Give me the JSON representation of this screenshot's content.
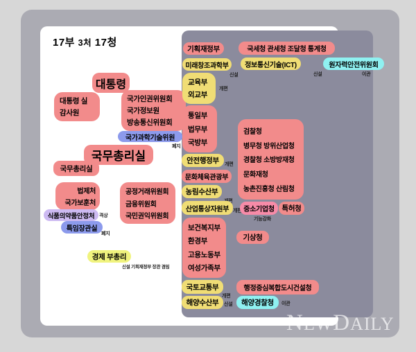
{
  "title": {
    "p1": "17부",
    "p2": "3처",
    "p3": "17청"
  },
  "colors": {
    "box_red": "#F28B8B",
    "box_yellow": "#F0DD75",
    "box_lemon": "#F0F37E",
    "box_cyan": "#8FF1F1",
    "box_blue": "#8C9AEC",
    "box_lavender": "#CDBAF2",
    "box_pink": "#F78BA8",
    "panel_purple": "#8B8B9D",
    "card_gray": "#ABABB3",
    "background": "#D7D7D7",
    "panel_white": "#FFFFFF"
  },
  "left": {
    "president": "대통령",
    "president_side": [
      "대통령 실",
      "감사원"
    ],
    "president_committees": [
      "국가인권위원회",
      "국가정보원",
      "방송통신위원회"
    ],
    "science_committee": "국가과학기술위원",
    "prime_minister": "국무총리실",
    "pm_office": "국무총리실",
    "small_ministries": [
      "법제처",
      "국가보훈처"
    ],
    "committees2": [
      "공정거래위원회",
      "금융위원회",
      "국민권익위원회"
    ],
    "food_safety": "식품의약품안정처",
    "special_minister": "특임장관실",
    "economy_deputy": "경제 부총리"
  },
  "ministries": {
    "moef": "기획재정부",
    "msip": "미래창조과학부",
    "edu_group": [
      "교육부",
      "외교부"
    ],
    "unification_group": [
      "통일부",
      "법무부",
      "국방부"
    ],
    "security": "안전행정부",
    "culture": "문화체육관광부",
    "agriculture": "농림수산부",
    "industry": "산업통상자원부",
    "health_group": [
      "보건복지부",
      "환경부",
      "고용노동부",
      "여성가족부"
    ],
    "land": "국토교통부",
    "ocean": "해양수산부"
  },
  "agencies": {
    "tax": "국세청 관세청 조달청 통계청",
    "ict": "정보통신기술(ICT)",
    "nuclear": "원자력안전위원회",
    "law_group": [
      "검찰청",
      "병무청 방위산업청",
      "경찰청 소방방재청",
      "문화재청",
      "농촌진흥청 산림청"
    ],
    "sme": "중소기업청",
    "patent": "특허청",
    "weather": "기상청",
    "admin_city": "행정중심복합도시건설청",
    "coast_guard": "해양경찰청"
  },
  "notes": {
    "sinseol": "신설",
    "gaepyeon": "개편",
    "pyeji": "폐지",
    "gyeoksang": "격상",
    "igwan": "이관",
    "gineung": "기능강화",
    "economy": "신설 기획재정부 장관 겸임"
  },
  "watermark": {
    "w1": "N",
    "w2": "EW",
    "w3": "D",
    "w4": "AILY"
  }
}
